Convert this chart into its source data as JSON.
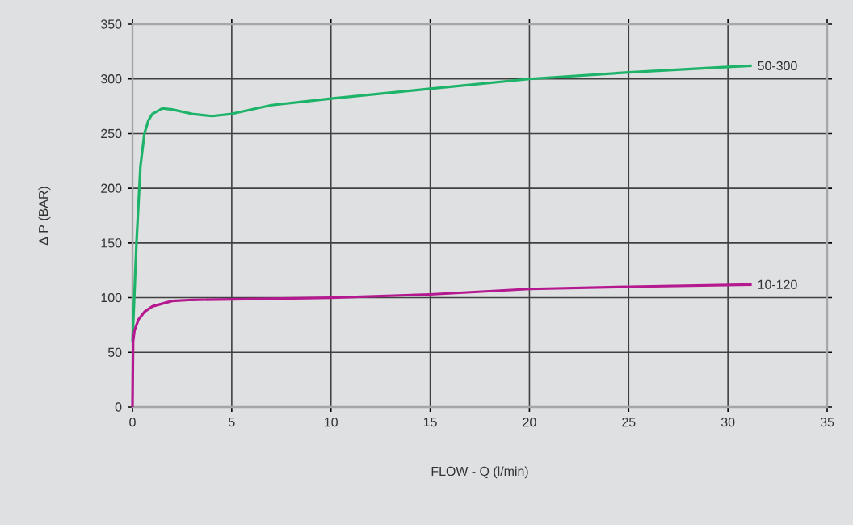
{
  "chart_data": {
    "type": "line",
    "xlabel": "FLOW - Q (l/min)",
    "ylabel": "Δ P (BAR)",
    "xlim": [
      0,
      35
    ],
    "ylim": [
      0,
      350
    ],
    "xticks": [
      0,
      5,
      10,
      15,
      20,
      25,
      30,
      35
    ],
    "yticks": [
      0,
      50,
      100,
      150,
      200,
      250,
      300,
      350
    ],
    "grid": true,
    "marker": "none",
    "line_style": "solid",
    "series": [
      {
        "name": "50-300",
        "color": "#1db46a",
        "x": [
          0,
          0.2,
          0.4,
          0.6,
          0.8,
          1,
          1.5,
          2,
          3,
          4,
          5,
          7,
          9,
          10,
          15,
          20,
          25,
          30,
          31.2
        ],
        "values": [
          60,
          150,
          220,
          250,
          262,
          268,
          273,
          272,
          268,
          266,
          268,
          276,
          280,
          282,
          291,
          300,
          306,
          311,
          312
        ]
      },
      {
        "name": "10-120",
        "color": "#b5198f",
        "x": [
          0,
          0.03,
          0.1,
          0.3,
          0.6,
          1,
          2,
          3,
          5,
          10,
          15,
          20,
          25,
          31.2
        ],
        "values": [
          0,
          60,
          70,
          80,
          87,
          92,
          97,
          98,
          98.5,
          100,
          103,
          108,
          110,
          112
        ]
      }
    ]
  }
}
